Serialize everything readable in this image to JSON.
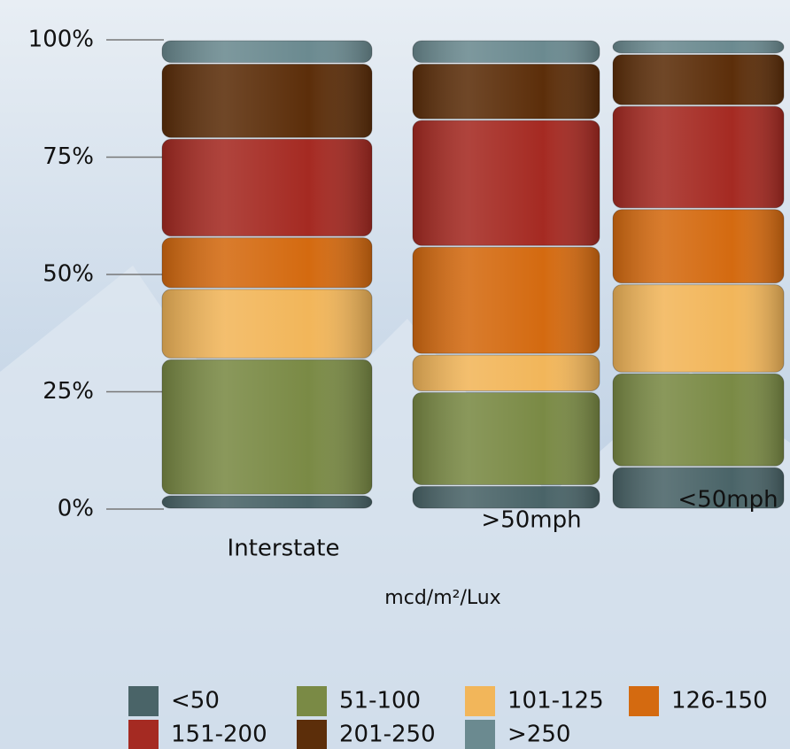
{
  "chart_data": {
    "type": "stacked_bar",
    "x_label": "mcd/m²/Lux",
    "categories": [
      "Interstate",
      ">50mph",
      "<50mph"
    ],
    "series": [
      {
        "name": "<50",
        "color": "#4a6468",
        "values": [
          3,
          5,
          9
        ]
      },
      {
        "name": "51-100",
        "color": "#7a8a45",
        "values": [
          29,
          20,
          20
        ]
      },
      {
        "name": "101-125",
        "color": "#f2b65a",
        "values": [
          15,
          8,
          19
        ]
      },
      {
        "name": "126-150",
        "color": "#d46a10",
        "values": [
          11,
          23,
          16
        ]
      },
      {
        "name": "151-200",
        "color": "#a52a22",
        "values": [
          21,
          27,
          22
        ]
      },
      {
        "name": "201-250",
        "color": "#5c2e0a",
        "values": [
          16,
          12,
          11
        ]
      },
      {
        "name": ">250",
        "color": "#6b8a90",
        "values": [
          5,
          5,
          3
        ]
      }
    ],
    "ylim": [
      0,
      100
    ],
    "yticks": [
      {
        "value": 0,
        "label": "0%"
      },
      {
        "value": 25,
        "label": "25%"
      },
      {
        "value": 50,
        "label": "50%"
      },
      {
        "value": 75,
        "label": "75%"
      },
      {
        "value": 100,
        "label": "100%"
      }
    ]
  }
}
